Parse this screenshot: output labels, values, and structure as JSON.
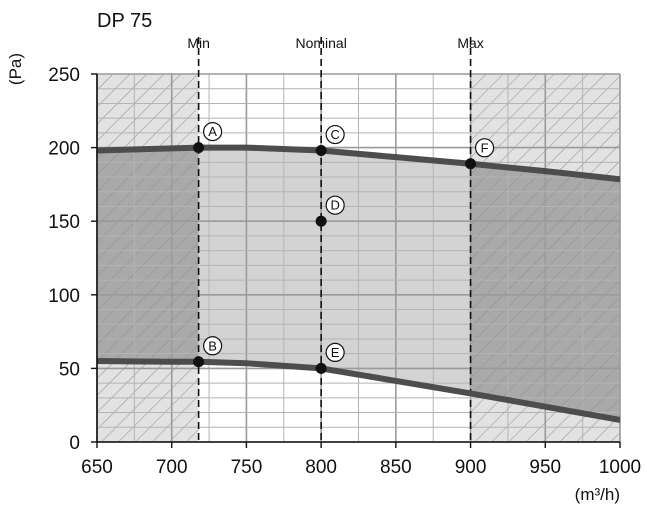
{
  "chart_data": {
    "type": "line",
    "title": "DP 75",
    "ylabel": "(Pa)",
    "xlabel": "(m³/h)",
    "xlim": [
      650,
      1000
    ],
    "ylim": [
      0,
      250
    ],
    "x_ticks": [
      650,
      700,
      750,
      800,
      850,
      900,
      950,
      1000
    ],
    "x_tick_labels": [
      "650",
      "700",
      "750",
      "800",
      "850",
      "900",
      "950",
      "1000"
    ],
    "y_ticks": [
      0,
      50,
      100,
      150,
      200,
      250
    ],
    "y_tick_labels": [
      "0",
      "50",
      "100",
      "150",
      "200",
      "250"
    ],
    "grid": true,
    "vertical_markers": [
      {
        "label": "Min",
        "x": 718
      },
      {
        "label": "Nominal",
        "x": 800
      },
      {
        "label": "Max",
        "x": 900
      }
    ],
    "series": [
      {
        "x": [
          650,
          700,
          718,
          750,
          800,
          850,
          900,
          950,
          1000
        ],
        "y": [
          198,
          199.5,
          200,
          200,
          198,
          193.5,
          189,
          184,
          178.5
        ]
      },
      {
        "x": [
          650,
          700,
          718,
          750,
          800,
          850,
          900,
          950,
          1000
        ],
        "y": [
          55,
          54.5,
          54.5,
          53.5,
          50,
          41.5,
          33,
          24,
          15
        ]
      }
    ],
    "points": [
      {
        "label": "A",
        "x": 718,
        "y": 200
      },
      {
        "label": "B",
        "x": 718,
        "y": 54.5
      },
      {
        "label": "C",
        "x": 800,
        "y": 198
      },
      {
        "label": "D",
        "x": 800,
        "y": 150
      },
      {
        "label": "E",
        "x": 800,
        "y": 50
      },
      {
        "label": "F",
        "x": 900,
        "y": 189
      }
    ],
    "colors": {
      "curve": "#4d4d4d",
      "operating_zone": "#d3d3d3",
      "outer_zone": "#e2e2e2",
      "inner_zone_dark": "#a9a9a9",
      "grid": "#9a9a9a",
      "point": "#111111"
    }
  }
}
